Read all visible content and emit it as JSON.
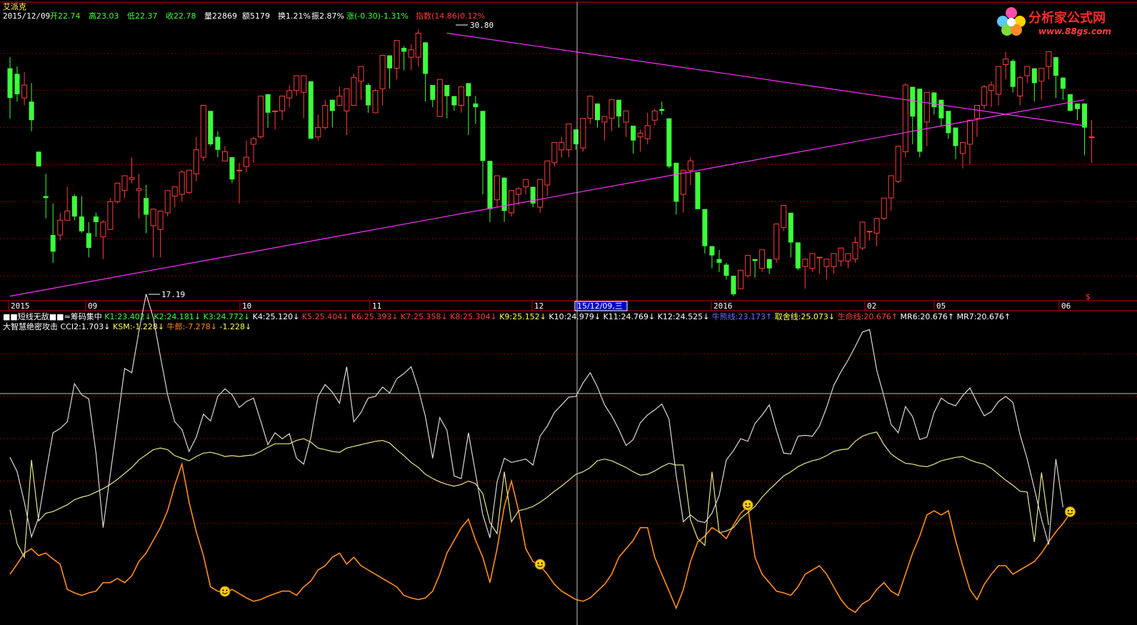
{
  "stock": {
    "name": "艾派克",
    "date": "2015/12/09",
    "open": "开22.74",
    "high": "高23.03",
    "low": "低22.37",
    "close": "收22.78",
    "volume": "量22869",
    "amount": "额5179",
    "turnover": "换1.21%",
    "amplitude": "振2.87%",
    "change": "涨(-0.30)-1.31%",
    "index": "指数(14.86)0.12%"
  },
  "logo": {
    "title": "分析家公式网",
    "url": "www.88gs.com"
  },
  "colors": {
    "up": "#ff3c3c",
    "down": "#3cff3c",
    "grid": "#800000",
    "trendline": "#ff30ff",
    "white_line": "#d8d8d8",
    "yellow_line": "#e6e68c",
    "orange_line": "#ff8c1e",
    "smiley": "#ffd200"
  },
  "axis": {
    "labels": [
      "2015",
      "09",
      "10",
      "11",
      "12",
      "2016",
      "02",
      "05",
      "06"
    ],
    "cursor_label": "15/12/09,三",
    "dollar": "$"
  },
  "markers": {
    "high": "30.80",
    "low": "17.19"
  },
  "indicator1": {
    "parts": [
      {
        "t": "■■短线无敌■■=筹码集中",
        "c": "#ffffff"
      },
      {
        "t": "K1:23.402↓",
        "c": "#3cff3c"
      },
      {
        "t": "K2:24.181↓",
        "c": "#3cff3c"
      },
      {
        "t": "K3:24.772↓",
        "c": "#3cff3c"
      },
      {
        "t": "K4:25.120↓",
        "c": "#ffffff"
      },
      {
        "t": "K5:25.404↓",
        "c": "#ff3c3c"
      },
      {
        "t": "K6:25.393↓",
        "c": "#ff3c3c"
      },
      {
        "t": "K7:25.358↓",
        "c": "#ff3c3c"
      },
      {
        "t": "K8:25.304↓",
        "c": "#ff3c3c"
      },
      {
        "t": "K9:25.152↓",
        "c": "#ffff50"
      },
      {
        "t": "K10:24.979↓",
        "c": "#ffffff"
      },
      {
        "t": "K11:24.769↓",
        "c": "#ffffff"
      },
      {
        "t": "K12:24.525↓",
        "c": "#ffffff"
      },
      {
        "t": "牛熊线:23.173↑",
        "c": "#6a6aff"
      },
      {
        "t": "取舍线:25.073↓",
        "c": "#ffff50"
      },
      {
        "t": "生命线:20.676↑",
        "c": "#ff3c3c"
      },
      {
        "t": "MR6:20.676↑",
        "c": "#ffffff"
      },
      {
        "t": "MR7:20.676↑",
        "c": "#ffffff"
      }
    ]
  },
  "indicator2": {
    "parts": [
      {
        "t": "大智慧绝密攻击",
        "c": "#ffffff"
      },
      {
        "t": "CCI2:1.703↓",
        "c": "#ffffff"
      },
      {
        "t": "KSM:-1.228↓",
        "c": "#ffff50"
      },
      {
        "t": "牛郎:-7.278↓",
        "c": "#ff8c1e"
      },
      {
        "t": "-1.228↓",
        "c": "#ffff50"
      }
    ]
  },
  "chart_data": {
    "type": "candlestick",
    "price_range": [
      17.0,
      31.5
    ],
    "candles": [
      [
        29.2,
        29.8,
        27.6,
        26.5
      ],
      [
        28.9,
        29.3,
        27.8,
        27.4
      ],
      [
        27.6,
        29.0,
        28.3,
        27.2
      ],
      [
        27.4,
        28.4,
        26.4,
        25.8
      ],
      [
        24.7,
        24.7,
        23.9,
        23.9
      ],
      [
        22.3,
        23.5,
        22.2,
        21.1
      ],
      [
        20.2,
        21.9,
        19.3,
        18.7
      ],
      [
        20.2,
        21.4,
        21.0,
        19.9
      ],
      [
        21.0,
        22.8,
        21.5,
        21.5
      ],
      [
        22.3,
        22.4,
        21.2,
        21.0
      ],
      [
        21.2,
        22.3,
        20.4,
        20.3
      ],
      [
        20.3,
        20.9,
        19.5,
        19.0
      ],
      [
        21.2,
        21.4,
        20.9,
        20.1
      ],
      [
        20.1,
        21.0,
        20.9,
        18.9
      ],
      [
        20.5,
        22.2,
        22.0,
        20.5
      ],
      [
        22.0,
        22.8,
        23.0,
        21.9
      ],
      [
        22.6,
        23.4,
        23.4,
        22.2
      ],
      [
        23.2,
        24.4,
        23.3,
        23.0
      ],
      [
        22.6,
        23.5,
        22.7,
        21.1
      ],
      [
        22.2,
        22.9,
        21.3,
        20.3
      ],
      [
        20.7,
        20.7,
        21.6,
        19.0
      ],
      [
        20.5,
        20.6,
        21.5,
        19.0
      ],
      [
        21.4,
        22.6,
        22.6,
        21.2
      ],
      [
        22.3,
        22.7,
        22.8,
        21.7
      ],
      [
        22.4,
        23.7,
        23.6,
        22.0
      ],
      [
        22.5,
        22.9,
        23.7,
        22.4
      ],
      [
        23.5,
        25.5,
        24.8,
        23.1
      ],
      [
        24.4,
        27.0,
        27.2,
        24.2
      ],
      [
        26.9,
        26.5,
        25.1,
        25.0
      ],
      [
        25.5,
        25.8,
        24.8,
        24.4
      ],
      [
        24.2,
        25.0,
        24.7,
        24.2
      ],
      [
        24.4,
        24.2,
        23.2,
        23.0
      ],
      [
        23.7,
        24.1,
        23.7,
        21.9
      ],
      [
        23.9,
        25.3,
        24.4,
        23.6
      ],
      [
        25.1,
        25.5,
        25.4,
        24.1
      ],
      [
        25.5,
        27.1,
        27.7,
        25.4
      ],
      [
        27.8,
        27.1,
        26.8,
        26.0
      ],
      [
        26.9,
        26.7,
        26.9,
        25.9
      ],
      [
        26.9,
        27.5,
        27.7,
        26.4
      ],
      [
        27.6,
        28.3,
        28.0,
        27.1
      ],
      [
        28.0,
        28.4,
        28.8,
        27.7
      ],
      [
        27.9,
        28.7,
        28.8,
        26.5
      ],
      [
        28.5,
        27.8,
        25.4,
        25.5
      ],
      [
        25.5,
        26.7,
        26.0,
        25.3
      ],
      [
        26.0,
        27.5,
        27.2,
        25.9
      ],
      [
        27.5,
        27.4,
        26.9,
        26.0
      ],
      [
        27.2,
        28.2,
        27.7,
        27.2
      ],
      [
        26.9,
        28.0,
        28.1,
        25.6
      ],
      [
        27.2,
        28.9,
        28.7,
        27.2
      ],
      [
        28.5,
        29.3,
        29.3,
        27.5
      ],
      [
        28.3,
        28.4,
        27.2,
        26.8
      ],
      [
        26.8,
        28.1,
        28.0,
        26.9
      ],
      [
        28.1,
        28.9,
        29.9,
        27.2
      ],
      [
        29.9,
        29.0,
        29.2,
        28.1
      ],
      [
        29.2,
        30.5,
        30.7,
        28.6
      ],
      [
        30.3,
        30.4,
        30.1,
        29.1
      ],
      [
        29.8,
        30.5,
        30.2,
        29.1
      ],
      [
        29.8,
        31.3,
        31.1,
        29.3
      ],
      [
        30.6,
        30.0,
        28.9,
        27.4
      ],
      [
        28.3,
        28.0,
        27.5,
        27.1
      ],
      [
        26.6,
        27.7,
        28.6,
        26.6
      ],
      [
        28.3,
        27.5,
        27.7,
        26.5
      ],
      [
        27.7,
        27.3,
        27.2,
        26.9
      ],
      [
        27.2,
        27.6,
        28.2,
        26.8
      ],
      [
        28.4,
        27.9,
        27.7,
        25.6
      ],
      [
        27.3,
        27.7,
        27.1,
        26.2
      ],
      [
        26.9,
        24.7,
        24.2,
        22.4
      ],
      [
        24.2,
        22.6,
        21.6,
        20.9
      ],
      [
        22.1,
        22.1,
        23.4,
        21.7
      ],
      [
        23.3,
        22.4,
        21.5,
        20.9
      ],
      [
        21.4,
        21.5,
        22.6,
        21.2
      ],
      [
        22.4,
        22.8,
        22.7,
        21.8
      ],
      [
        22.8,
        22.9,
        23.2,
        22.4
      ],
      [
        22.8,
        22.6,
        21.9,
        21.7
      ],
      [
        21.7,
        22.4,
        23.2,
        21.4
      ],
      [
        22.9,
        24.1,
        24.2,
        22.3
      ],
      [
        24.1,
        24.7,
        25.2,
        23.9
      ],
      [
        24.8,
        25.5,
        25.2,
        24.4
      ],
      [
        24.8,
        25.9,
        26.2,
        24.4
      ],
      [
        25.9,
        25.6,
        25.1,
        24.8
      ],
      [
        24.9,
        26.1,
        26.5,
        24.7
      ],
      [
        26.5,
        27.2,
        27.7,
        26.2
      ],
      [
        27.3,
        27.2,
        26.4,
        26.0
      ],
      [
        26.3,
        26.6,
        26.6,
        25.3
      ],
      [
        26.5,
        27.4,
        27.5,
        25.8
      ],
      [
        27.5,
        27.1,
        26.6,
        26.0
      ],
      [
        26.3,
        26.6,
        26.9,
        25.5
      ],
      [
        26.1,
        25.6,
        25.3,
        24.6
      ],
      [
        25.5,
        25.9,
        25.7,
        24.7
      ],
      [
        25.4,
        26.8,
        26.1,
        25.1
      ],
      [
        26.4,
        27.0,
        26.9,
        26.1
      ],
      [
        27.0,
        27.4,
        26.9,
        26.7
      ],
      [
        26.5,
        25.0,
        23.9,
        23.8
      ],
      [
        24.1,
        23.2,
        22.0,
        21.3
      ],
      [
        22.4,
        23.7,
        23.7,
        21.4
      ],
      [
        23.7,
        24.4,
        24.2,
        22.9
      ],
      [
        23.6,
        22.2,
        21.6,
        21.8
      ],
      [
        21.6,
        20.3,
        19.6,
        19.2
      ],
      [
        19.6,
        19.1,
        19.1,
        18.4
      ],
      [
        18.9,
        19.4,
        18.7,
        18.2
      ],
      [
        18.6,
        18.7,
        18.0,
        17.8
      ],
      [
        18.0,
        17.9,
        17.0,
        16.9
      ],
      [
        17.3,
        18.2,
        18.3,
        17.3
      ],
      [
        18.0,
        18.6,
        19.1,
        17.9
      ],
      [
        18.9,
        18.7,
        18.8,
        17.9
      ],
      [
        18.4,
        18.5,
        19.4,
        18.2
      ],
      [
        18.9,
        18.8,
        18.4,
        18.1
      ],
      [
        18.9,
        20.3,
        20.8,
        18.7
      ],
      [
        20.6,
        21.2,
        21.8,
        20.4
      ],
      [
        21.4,
        20.0,
        19.8,
        19.0
      ],
      [
        19.8,
        19.0,
        18.4,
        18.3
      ],
      [
        18.5,
        18.3,
        18.9,
        17.3
      ],
      [
        18.4,
        18.6,
        19.2,
        18.2
      ],
      [
        19.0,
        18.9,
        19.0,
        18.1
      ],
      [
        18.5,
        18.0,
        18.9,
        17.8
      ],
      [
        18.5,
        18.8,
        19.2,
        18.1
      ],
      [
        18.8,
        19.2,
        19.5,
        18.5
      ],
      [
        18.8,
        19.1,
        19.2,
        18.4
      ],
      [
        18.9,
        20.1,
        19.8,
        18.7
      ],
      [
        19.5,
        20.9,
        20.9,
        19.4
      ],
      [
        20.4,
        20.4,
        20.4,
        19.9
      ],
      [
        20.3,
        20.7,
        21.1,
        19.6
      ],
      [
        21.1,
        22.0,
        22.2,
        21.0
      ],
      [
        22.2,
        23.0,
        23.4,
        21.5
      ],
      [
        23.1,
        24.4,
        25.0,
        23.0
      ],
      [
        24.7,
        28.4,
        28.3,
        24.4
      ],
      [
        28.2,
        28.2,
        26.6,
        25.1
      ],
      [
        28.1,
        27.9,
        24.7,
        24.4
      ],
      [
        26.3,
        27.1,
        27.9,
        25.0
      ],
      [
        27.9,
        27.8,
        27.1,
        26.7
      ],
      [
        27.5,
        27.2,
        26.5,
        26.1
      ],
      [
        26.9,
        26.9,
        25.7,
        25.4
      ],
      [
        26.0,
        25.9,
        25.0,
        24.3
      ],
      [
        24.6,
        25.1,
        25.2,
        23.8
      ],
      [
        25.1,
        25.8,
        26.4,
        24.0
      ],
      [
        26.5,
        27.0,
        27.2,
        25.5
      ],
      [
        27.2,
        28.3,
        28.2,
        27.0
      ],
      [
        28.0,
        28.5,
        28.3,
        27.1
      ],
      [
        27.8,
        28.5,
        29.3,
        27.2
      ],
      [
        29.4,
        30.1,
        29.7,
        28.6
      ],
      [
        29.6,
        29.7,
        28.2,
        27.9
      ],
      [
        27.7,
        28.8,
        28.7,
        27.2
      ],
      [
        28.8,
        29.3,
        29.3,
        28.4
      ],
      [
        29.2,
        28.5,
        28.4,
        27.4
      ],
      [
        28.5,
        29.1,
        29.2,
        27.5
      ],
      [
        29.3,
        29.9,
        30.1,
        28.6
      ],
      [
        29.8,
        29.2,
        28.8,
        27.6
      ],
      [
        28.7,
        28.7,
        28.1,
        27.5
      ],
      [
        27.8,
        27.5,
        26.9,
        26.9
      ],
      [
        27.3,
        26.6,
        27.0,
        26.4
      ],
      [
        27.3,
        26.6,
        26.0,
        24.5
      ],
      [
        25.5,
        26.4,
        25.5,
        24.1
      ]
    ],
    "trendlines": [
      {
        "from": [
          0,
          16.9
        ],
        "to": [
          150,
          27.5
        ]
      },
      {
        "from": [
          61,
          31.1
        ],
        "to": [
          150,
          26.1
        ]
      }
    ],
    "grid_prices": [
      30.0,
      28.0,
      26.0,
      24.0,
      22.0,
      20.0,
      18.0
    ],
    "osc_range": [
      -120,
      220
    ],
    "osc_grid": [
      0,
      50,
      100,
      150,
      200
    ],
    "white": [
      78,
      61,
      25,
      -16,
      7,
      59,
      107,
      112,
      120,
      165,
      152,
      147,
      83,
      -5,
      58,
      119,
      183,
      178,
      227,
      271,
      243,
      197,
      152,
      120,
      111,
      85,
      102,
      129,
      121,
      150,
      159,
      152,
      137,
      144,
      148,
      121,
      93,
      107,
      100,
      106,
      77,
      70,
      102,
      150,
      164,
      155,
      142,
      185,
      120,
      131,
      148,
      150,
      161,
      154,
      171,
      177,
      185,
      159,
      126,
      77,
      125,
      110,
      56,
      53,
      107,
      59,
      10,
      -17,
      49,
      77,
      72,
      74,
      76,
      69,
      103,
      115,
      131,
      140,
      149,
      150,
      166,
      178,
      161,
      140,
      127,
      111,
      92,
      99,
      119,
      128,
      134,
      141,
      123,
      57,
      2,
      10,
      3,
      1,
      12,
      33,
      75,
      86,
      100,
      97,
      118,
      128,
      140,
      110,
      83,
      82,
      103,
      104,
      103,
      115,
      137,
      163,
      179,
      193,
      209,
      226,
      229,
      181,
      150,
      117,
      107,
      138,
      126,
      99,
      102,
      131,
      148,
      142,
      139,
      151,
      160,
      143,
      127,
      132,
      144,
      150,
      143,
      105,
      76,
      41,
      5,
      -25,
      76,
      19
    ],
    "yellow": [
      16,
      -24,
      -40,
      75,
      3,
      12,
      14,
      18,
      22,
      28,
      31,
      33,
      37,
      41,
      46,
      52,
      59,
      66,
      75,
      81,
      87,
      89,
      87,
      80,
      77,
      74,
      79,
      83,
      84,
      82,
      79,
      80,
      79,
      80,
      81,
      85,
      90,
      94,
      94,
      94,
      98,
      100,
      96,
      89,
      87,
      85,
      84,
      89,
      91,
      93,
      95,
      97,
      98,
      95,
      87,
      80,
      72,
      66,
      58,
      53,
      49,
      46,
      44,
      46,
      50,
      47,
      35,
      1,
      -12,
      61,
      2,
      15,
      17,
      20,
      25,
      31,
      38,
      44,
      51,
      58,
      61,
      66,
      74,
      76,
      74,
      70,
      66,
      61,
      57,
      58,
      62,
      67,
      71,
      69,
      69,
      4,
      -18,
      -26,
      61,
      -11,
      -9,
      -5,
      6,
      13,
      20,
      31,
      40,
      48,
      56,
      61,
      67,
      71,
      74,
      76,
      80,
      85,
      87,
      88,
      97,
      103,
      106,
      108,
      93,
      82,
      76,
      71,
      70,
      68,
      67,
      70,
      74,
      76,
      78,
      79,
      75,
      72,
      70,
      65,
      58,
      51,
      45,
      38,
      37,
      -22,
      60,
      -2
    ],
    "orange": [
      -60,
      -48,
      -35,
      -30,
      -38,
      -35,
      -42,
      -48,
      -78,
      -82,
      -85,
      -82,
      -80,
      -70,
      -70,
      -65,
      -70,
      -62,
      -45,
      -35,
      -20,
      -5,
      15,
      45,
      70,
      25,
      -10,
      -38,
      -75,
      -80,
      -82,
      -78,
      -83,
      -88,
      -92,
      -90,
      -86,
      -83,
      -80,
      -80,
      -85,
      -75,
      -68,
      -55,
      -50,
      -40,
      -35,
      -48,
      -40,
      -50,
      -55,
      -60,
      -65,
      -70,
      -75,
      -85,
      -88,
      -90,
      -88,
      -80,
      -60,
      -35,
      -20,
      -5,
      5,
      -20,
      -40,
      -70,
      -30,
      20,
      50,
      15,
      -30,
      -45,
      -50,
      -60,
      -72,
      -80,
      -85,
      -90,
      -92,
      -88,
      -80,
      -72,
      -60,
      -40,
      -30,
      -20,
      -5,
      -5,
      -40,
      -60,
      -80,
      -100,
      -78,
      -45,
      -22,
      -15,
      -5,
      -10,
      -18,
      -2,
      12,
      20,
      -40,
      -60,
      -70,
      -80,
      -82,
      -85,
      -75,
      -60,
      -55,
      -50,
      -60,
      -75,
      -90,
      -100,
      -105,
      -95,
      -90,
      -78,
      -70,
      -80,
      -85,
      -60,
      -35,
      -15,
      10,
      15,
      10,
      15,
      -20,
      -50,
      -78,
      -90,
      -72,
      -60,
      -50,
      -50,
      -60,
      -55,
      -50,
      -45,
      -35,
      -22,
      -10,
      0,
      12
    ],
    "smileys": [
      30,
      74,
      103,
      148
    ]
  }
}
